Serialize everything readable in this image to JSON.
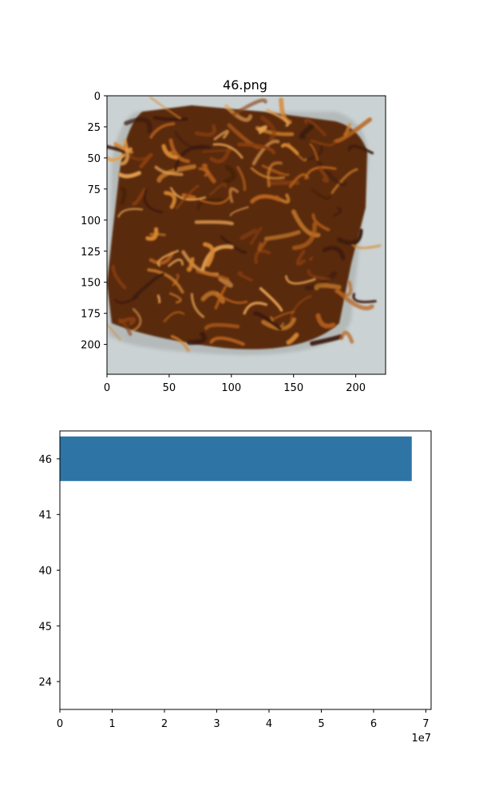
{
  "chart_data": [
    {
      "type": "image",
      "title": "46.png",
      "description_subject": "noodle-food-photo",
      "xlim": [
        0,
        224
      ],
      "ylim": [
        224,
        0
      ],
      "xticks": [
        0,
        50,
        100,
        150,
        200
      ],
      "yticks": [
        0,
        25,
        50,
        75,
        100,
        125,
        150,
        175,
        200
      ],
      "colors": {
        "plate": "#c9d0d2",
        "food_dark": "#3a1a0a",
        "food_mid": "#8a3f0c",
        "food_light": "#d7872e"
      }
    },
    {
      "type": "bar",
      "orientation": "horizontal",
      "categories": [
        "46",
        "41",
        "40",
        "45",
        "24"
      ],
      "values": [
        67300000,
        0,
        0,
        0,
        0
      ],
      "xlim": [
        0,
        71000000
      ],
      "xticks": [
        0,
        10000000,
        20000000,
        30000000,
        40000000,
        50000000,
        60000000,
        70000000
      ],
      "xtick_labels": [
        "0",
        "1",
        "2",
        "3",
        "4",
        "5",
        "6",
        "7"
      ],
      "offset_text": "1e7",
      "color": "#2e74a5",
      "xlabel": "",
      "ylabel": ""
    }
  ]
}
